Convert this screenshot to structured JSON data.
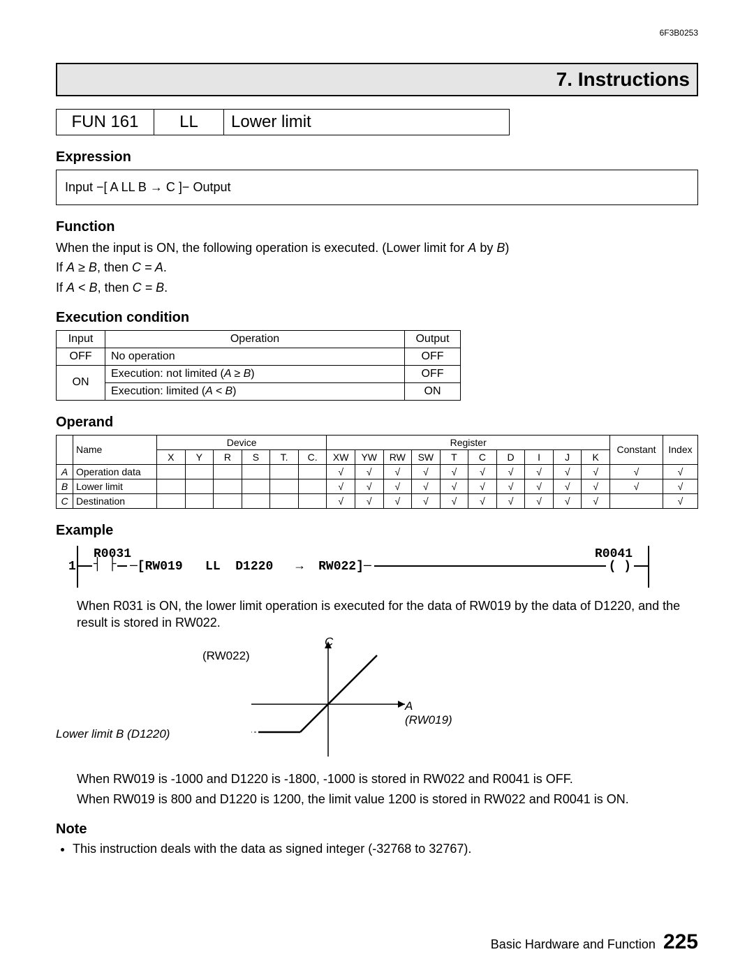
{
  "doc_id": "6F3B0253",
  "section_title": "7. Instructions",
  "fun_row": {
    "code": "FUN 161",
    "mnemonic": "LL",
    "name": "Lower limit"
  },
  "expression": {
    "heading": "Expression",
    "text": "Input  −[ A  LL  B  →  C ]−  Output"
  },
  "function": {
    "heading": "Function",
    "line1": "When the input is ON, the following operation is executed. (Lower limit for A by B)",
    "line2": "If A ≥ B, then C = A.",
    "line3": "If A < B, then C = B."
  },
  "exec": {
    "heading": "Execution condition",
    "cols": [
      "Input",
      "Operation",
      "Output"
    ],
    "rows": [
      [
        "OFF",
        "No operation",
        "OFF"
      ],
      [
        "ON",
        "Execution: not limited (A ≥ B)",
        "OFF"
      ],
      [
        "",
        "Execution: limited (A < B)",
        "ON"
      ]
    ]
  },
  "operand": {
    "heading": "Operand",
    "group_headers": [
      "",
      "Name",
      "Device",
      "Register",
      "Constant",
      "Index"
    ],
    "device_cols": [
      "X",
      "Y",
      "R",
      "S",
      "T.",
      "C."
    ],
    "register_cols": [
      "XW",
      "YW",
      "RW",
      "SW",
      "T",
      "C",
      "D",
      "I",
      "J",
      "K"
    ],
    "rows": [
      {
        "letter": "A",
        "name": "Operation data",
        "device": [
          "",
          "",
          "",
          "",
          "",
          ""
        ],
        "register": [
          "√",
          "√",
          "√",
          "√",
          "√",
          "√",
          "√",
          "√",
          "√",
          "√"
        ],
        "constant": "√",
        "index": "√"
      },
      {
        "letter": "B",
        "name": "Lower limit",
        "device": [
          "",
          "",
          "",
          "",
          "",
          ""
        ],
        "register": [
          "√",
          "√",
          "√",
          "√",
          "√",
          "√",
          "√",
          "√",
          "√",
          "√"
        ],
        "constant": "√",
        "index": "√"
      },
      {
        "letter": "C",
        "name": "Destination",
        "device": [
          "",
          "",
          "",
          "",
          "",
          ""
        ],
        "register": [
          "√",
          "√",
          "√",
          "√",
          "√",
          "√",
          "√",
          "√",
          "√",
          "√"
        ],
        "constant": "",
        "index": "√"
      }
    ]
  },
  "example": {
    "heading": "Example",
    "ladder": {
      "rung_num": "1",
      "contact": "R0031",
      "coil": "R0041",
      "block_a": "RW019",
      "op": "LL",
      "block_b": "D1220",
      "arrow": "→",
      "block_c": "RW022"
    },
    "desc1": "When R031 is ON, the lower limit operation is executed for the data of RW019 by the data of D1220, and the result is stored in RW022.",
    "graph": {
      "c_label": "C",
      "c_reg": "(RW022)",
      "a_label": "A (RW019)",
      "b_label": "Lower limit B (D1220)"
    },
    "desc2": "When RW019 is -1000 and D1220 is -1800, -1000 is stored in RW022 and R0041 is OFF.",
    "desc3": "When RW019 is 800 and D1220 is 1200, the limit value 1200 is stored in RW022 and R0041 is ON."
  },
  "note": {
    "heading": "Note",
    "item": "This instruction deals with the data as signed integer (-32768 to 32767)."
  },
  "footer": {
    "text": "Basic Hardware and Function",
    "page": "225"
  }
}
